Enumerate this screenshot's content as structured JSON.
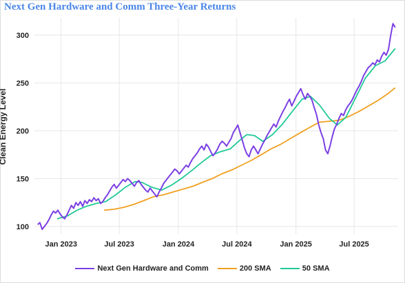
{
  "chart_data": {
    "type": "line",
    "title": "Next Gen Hardware and Comm Three-Year Returns",
    "ylabel": "Clean Energy Level",
    "xlabel": "",
    "ylim": [
      92,
      318
    ],
    "yticks": [
      100,
      150,
      200,
      250,
      300
    ],
    "xticks": [
      {
        "label": "Jan 2023",
        "date": "2023-01-01"
      },
      {
        "label": "Jul 2023",
        "date": "2023-07-01"
      },
      {
        "label": "Jan 2024",
        "date": "2024-01-01"
      },
      {
        "label": "Jul 2024",
        "date": "2024-07-01"
      },
      {
        "label": "Jan 2025",
        "date": "2025-01-01"
      },
      {
        "label": "Jul 2025",
        "date": "2025-07-01"
      }
    ],
    "xlim": [
      "2022-10-10",
      "2025-11-15"
    ],
    "grid": true,
    "legend_position": "bottom",
    "series": [
      {
        "name": "Next Gen Hardware and Comm",
        "color": "#7b3fe4",
        "points": [
          [
            "2022-10-20",
            102
          ],
          [
            "2022-10-27",
            104
          ],
          [
            "2022-11-03",
            97
          ],
          [
            "2022-11-10",
            100
          ],
          [
            "2022-11-17",
            103
          ],
          [
            "2022-11-24",
            107
          ],
          [
            "2022-12-01",
            112
          ],
          [
            "2022-12-08",
            116
          ],
          [
            "2022-12-15",
            114
          ],
          [
            "2022-12-22",
            117
          ],
          [
            "2022-12-29",
            113
          ],
          [
            "2023-01-05",
            110
          ],
          [
            "2023-01-12",
            108
          ],
          [
            "2023-01-19",
            112
          ],
          [
            "2023-01-26",
            117
          ],
          [
            "2023-02-02",
            122
          ],
          [
            "2023-02-09",
            119
          ],
          [
            "2023-02-16",
            125
          ],
          [
            "2023-02-23",
            122
          ],
          [
            "2023-03-02",
            126
          ],
          [
            "2023-03-09",
            121
          ],
          [
            "2023-03-16",
            127
          ],
          [
            "2023-03-23",
            124
          ],
          [
            "2023-03-30",
            128
          ],
          [
            "2023-04-06",
            126
          ],
          [
            "2023-04-13",
            130
          ],
          [
            "2023-04-20",
            127
          ],
          [
            "2023-04-27",
            129
          ],
          [
            "2023-05-04",
            124
          ],
          [
            "2023-05-11",
            126
          ],
          [
            "2023-05-18",
            130
          ],
          [
            "2023-05-25",
            133
          ],
          [
            "2023-06-01",
            137
          ],
          [
            "2023-06-08",
            141
          ],
          [
            "2023-06-15",
            144
          ],
          [
            "2023-06-22",
            140
          ],
          [
            "2023-06-29",
            143
          ],
          [
            "2023-07-06",
            146
          ],
          [
            "2023-07-13",
            149
          ],
          [
            "2023-07-20",
            147
          ],
          [
            "2023-07-27",
            150
          ],
          [
            "2023-08-03",
            148
          ],
          [
            "2023-08-10",
            145
          ],
          [
            "2023-08-17",
            142
          ],
          [
            "2023-08-24",
            146
          ],
          [
            "2023-08-31",
            148
          ],
          [
            "2023-09-07",
            144
          ],
          [
            "2023-09-14",
            141
          ],
          [
            "2023-09-21",
            138
          ],
          [
            "2023-09-28",
            136
          ],
          [
            "2023-10-05",
            140
          ],
          [
            "2023-10-12",
            137
          ],
          [
            "2023-10-19",
            134
          ],
          [
            "2023-10-26",
            131
          ],
          [
            "2023-11-02",
            136
          ],
          [
            "2023-11-09",
            140
          ],
          [
            "2023-11-16",
            145
          ],
          [
            "2023-11-23",
            148
          ],
          [
            "2023-11-30",
            151
          ],
          [
            "2023-12-07",
            154
          ],
          [
            "2023-12-14",
            157
          ],
          [
            "2023-12-21",
            160
          ],
          [
            "2023-12-28",
            158
          ],
          [
            "2024-01-04",
            155
          ],
          [
            "2024-01-11",
            158
          ],
          [
            "2024-01-18",
            161
          ],
          [
            "2024-01-25",
            164
          ],
          [
            "2024-02-01",
            162
          ],
          [
            "2024-02-08",
            167
          ],
          [
            "2024-02-15",
            171
          ],
          [
            "2024-02-22",
            174
          ],
          [
            "2024-02-29",
            177
          ],
          [
            "2024-03-07",
            181
          ],
          [
            "2024-03-14",
            184
          ],
          [
            "2024-03-21",
            180
          ],
          [
            "2024-03-28",
            186
          ],
          [
            "2024-04-04",
            183
          ],
          [
            "2024-04-11",
            178
          ],
          [
            "2024-04-18",
            174
          ],
          [
            "2024-04-25",
            177
          ],
          [
            "2024-05-02",
            181
          ],
          [
            "2024-05-09",
            186
          ],
          [
            "2024-05-16",
            189
          ],
          [
            "2024-05-23",
            187
          ],
          [
            "2024-05-30",
            184
          ],
          [
            "2024-06-06",
            188
          ],
          [
            "2024-06-13",
            192
          ],
          [
            "2024-06-20",
            198
          ],
          [
            "2024-06-27",
            202
          ],
          [
            "2024-07-04",
            206
          ],
          [
            "2024-07-11",
            198
          ],
          [
            "2024-07-18",
            190
          ],
          [
            "2024-07-25",
            182
          ],
          [
            "2024-08-01",
            176
          ],
          [
            "2024-08-08",
            173
          ],
          [
            "2024-08-15",
            180
          ],
          [
            "2024-08-22",
            184
          ],
          [
            "2024-08-29",
            180
          ],
          [
            "2024-09-05",
            176
          ],
          [
            "2024-09-12",
            181
          ],
          [
            "2024-09-19",
            186
          ],
          [
            "2024-09-26",
            190
          ],
          [
            "2024-10-03",
            195
          ],
          [
            "2024-10-10",
            199
          ],
          [
            "2024-10-17",
            203
          ],
          [
            "2024-10-24",
            207
          ],
          [
            "2024-10-31",
            204
          ],
          [
            "2024-11-07",
            210
          ],
          [
            "2024-11-14",
            215
          ],
          [
            "2024-11-21",
            220
          ],
          [
            "2024-11-28",
            224
          ],
          [
            "2024-12-05",
            229
          ],
          [
            "2024-12-12",
            233
          ],
          [
            "2024-12-19",
            226
          ],
          [
            "2024-12-26",
            231
          ],
          [
            "2025-01-02",
            236
          ],
          [
            "2025-01-09",
            240
          ],
          [
            "2025-01-16",
            244
          ],
          [
            "2025-01-23",
            238
          ],
          [
            "2025-01-30",
            233
          ],
          [
            "2025-02-06",
            239
          ],
          [
            "2025-02-13",
            236
          ],
          [
            "2025-02-20",
            232
          ],
          [
            "2025-02-27",
            224
          ],
          [
            "2025-03-06",
            217
          ],
          [
            "2025-03-13",
            206
          ],
          [
            "2025-03-20",
            198
          ],
          [
            "2025-03-27",
            192
          ],
          [
            "2025-04-03",
            180
          ],
          [
            "2025-04-10",
            176
          ],
          [
            "2025-04-17",
            184
          ],
          [
            "2025-04-24",
            194
          ],
          [
            "2025-05-01",
            202
          ],
          [
            "2025-05-08",
            207
          ],
          [
            "2025-05-15",
            213
          ],
          [
            "2025-05-22",
            218
          ],
          [
            "2025-05-29",
            216
          ],
          [
            "2025-06-05",
            222
          ],
          [
            "2025-06-12",
            226
          ],
          [
            "2025-06-19",
            229
          ],
          [
            "2025-06-26",
            233
          ],
          [
            "2025-07-03",
            238
          ],
          [
            "2025-07-10",
            243
          ],
          [
            "2025-07-17",
            247
          ],
          [
            "2025-07-24",
            252
          ],
          [
            "2025-07-31",
            258
          ],
          [
            "2025-08-07",
            262
          ],
          [
            "2025-08-14",
            266
          ],
          [
            "2025-08-21",
            268
          ],
          [
            "2025-08-28",
            271
          ],
          [
            "2025-09-04",
            269
          ],
          [
            "2025-09-11",
            274
          ],
          [
            "2025-09-18",
            272
          ],
          [
            "2025-09-25",
            278
          ],
          [
            "2025-10-02",
            282
          ],
          [
            "2025-10-09",
            279
          ],
          [
            "2025-10-16",
            285
          ],
          [
            "2025-10-23",
            300
          ],
          [
            "2025-10-30",
            312
          ],
          [
            "2025-11-06",
            308
          ]
        ]
      },
      {
        "name": "200 SMA",
        "color": "#f0a020",
        "points": [
          [
            "2023-05-15",
            117
          ],
          [
            "2023-06-15",
            118
          ],
          [
            "2023-07-15",
            120
          ],
          [
            "2023-08-15",
            123
          ],
          [
            "2023-09-15",
            127
          ],
          [
            "2023-10-15",
            131
          ],
          [
            "2023-11-15",
            133
          ],
          [
            "2023-12-15",
            136
          ],
          [
            "2024-01-15",
            139
          ],
          [
            "2024-02-15",
            142
          ],
          [
            "2024-03-15",
            146
          ],
          [
            "2024-04-15",
            150
          ],
          [
            "2024-05-15",
            155
          ],
          [
            "2024-06-15",
            159
          ],
          [
            "2024-07-15",
            164
          ],
          [
            "2024-08-15",
            169
          ],
          [
            "2024-09-15",
            175
          ],
          [
            "2024-10-15",
            181
          ],
          [
            "2024-11-15",
            186
          ],
          [
            "2024-12-15",
            192
          ],
          [
            "2025-01-15",
            198
          ],
          [
            "2025-02-15",
            204
          ],
          [
            "2025-03-15",
            209
          ],
          [
            "2025-04-15",
            210
          ],
          [
            "2025-05-15",
            211
          ],
          [
            "2025-06-15",
            215
          ],
          [
            "2025-07-15",
            220
          ],
          [
            "2025-08-15",
            226
          ],
          [
            "2025-09-15",
            232
          ],
          [
            "2025-10-15",
            239
          ],
          [
            "2025-11-06",
            245
          ]
        ]
      },
      {
        "name": "50 SMA",
        "color": "#20c997",
        "points": [
          [
            "2022-12-20",
            108
          ],
          [
            "2023-01-20",
            111
          ],
          [
            "2023-02-20",
            117
          ],
          [
            "2023-03-20",
            121
          ],
          [
            "2023-04-20",
            124
          ],
          [
            "2023-05-20",
            126
          ],
          [
            "2023-06-20",
            133
          ],
          [
            "2023-07-20",
            141
          ],
          [
            "2023-08-20",
            147
          ],
          [
            "2023-09-10",
            146
          ],
          [
            "2023-10-10",
            141
          ],
          [
            "2023-11-10",
            138
          ],
          [
            "2023-12-10",
            143
          ],
          [
            "2024-01-10",
            150
          ],
          [
            "2024-02-10",
            158
          ],
          [
            "2024-03-10",
            166
          ],
          [
            "2024-04-10",
            174
          ],
          [
            "2024-05-10",
            178
          ],
          [
            "2024-06-10",
            181
          ],
          [
            "2024-07-10",
            190
          ],
          [
            "2024-08-01",
            196
          ],
          [
            "2024-08-25",
            195
          ],
          [
            "2024-09-20",
            189
          ],
          [
            "2024-10-20",
            196
          ],
          [
            "2024-11-20",
            207
          ],
          [
            "2024-12-20",
            220
          ],
          [
            "2025-01-20",
            233
          ],
          [
            "2025-02-15",
            236
          ],
          [
            "2025-03-15",
            227
          ],
          [
            "2025-04-15",
            213
          ],
          [
            "2025-05-10",
            206
          ],
          [
            "2025-06-05",
            214
          ],
          [
            "2025-07-05",
            234
          ],
          [
            "2025-08-05",
            255
          ],
          [
            "2025-09-05",
            268
          ],
          [
            "2025-10-05",
            273
          ],
          [
            "2025-11-06",
            286
          ]
        ]
      }
    ]
  }
}
